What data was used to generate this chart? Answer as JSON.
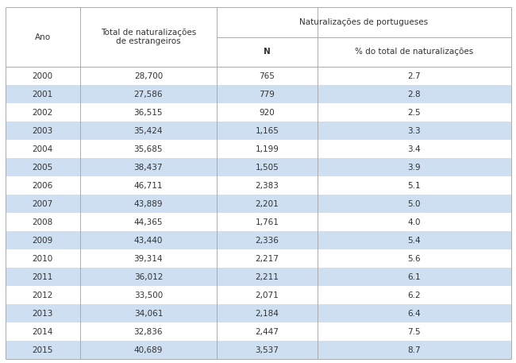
{
  "headers": {
    "col1": "Ano",
    "col2": "Total de naturalizações\nde estrangeiros",
    "col3_group": "Naturalizações de portugueses",
    "col3": "N",
    "col4": "% do total de naturalizações"
  },
  "rows": [
    [
      "2000",
      "28,700",
      "765",
      "2.7"
    ],
    [
      "2001",
      "27,586",
      "779",
      "2.8"
    ],
    [
      "2002",
      "36,515",
      "920",
      "2.5"
    ],
    [
      "2003",
      "35,424",
      "1,165",
      "3.3"
    ],
    [
      "2004",
      "35,685",
      "1,199",
      "3.4"
    ],
    [
      "2005",
      "38,437",
      "1,505",
      "3.9"
    ],
    [
      "2006",
      "46,711",
      "2,383",
      "5.1"
    ],
    [
      "2007",
      "43,889",
      "2,201",
      "5.0"
    ],
    [
      "2008",
      "44,365",
      "1,761",
      "4.0"
    ],
    [
      "2009",
      "43,440",
      "2,336",
      "5.4"
    ],
    [
      "2010",
      "39,314",
      "2,217",
      "5.6"
    ],
    [
      "2011",
      "36,012",
      "2,211",
      "6.1"
    ],
    [
      "2012",
      "33,500",
      "2,071",
      "6.2"
    ],
    [
      "2013",
      "34,061",
      "2,184",
      "6.4"
    ],
    [
      "2014",
      "32,836",
      "2,447",
      "7.5"
    ],
    [
      "2015",
      "40,689",
      "3,537",
      "8.7"
    ]
  ],
  "shaded_rows": [
    1,
    3,
    5,
    7,
    9,
    11,
    13,
    15
  ],
  "shade_color": "#cddff0",
  "bg_color": "#ffffff",
  "text_color": "#333333",
  "font_size": 7.5,
  "header_font_size": 7.5,
  "figsize": [
    6.5,
    4.57
  ],
  "dpi": 100
}
